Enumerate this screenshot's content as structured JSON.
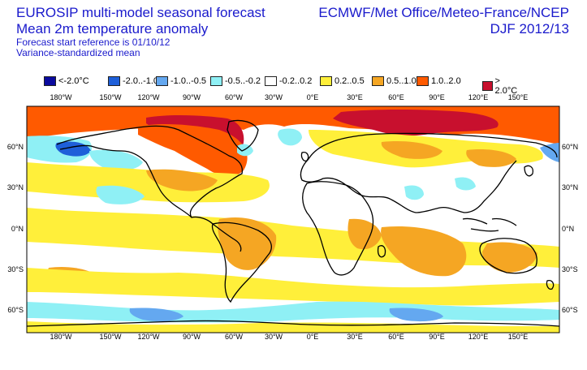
{
  "header": {
    "title_line1": "EUROSIP multi-model seasonal forecast",
    "title_line2": "Mean 2m temperature anomaly",
    "subtitle_line1": "Forecast start reference is 01/10/12",
    "subtitle_line2": "Variance-standardized mean",
    "source": "ECMWF/Met Office/Meteo-France/NCEP",
    "season": "DJF 2012/13"
  },
  "legend": [
    {
      "label": "<-2.0°C",
      "color": "#0a0a9e"
    },
    {
      "label": "-2.0..-1.0",
      "color": "#1e5fd9"
    },
    {
      "label": "-1.0..-0.5",
      "color": "#64a8f0"
    },
    {
      "label": "-0.5..-0.2",
      "color": "#8ff0f5"
    },
    {
      "label": "-0.2..0.2",
      "color": "#ffffff"
    },
    {
      "label": "0.2..0.5",
      "color": "#ffef3a"
    },
    {
      "label": "0.5..1.0",
      "color": "#f5a623"
    },
    {
      "label": "1.0..2.0",
      "color": "#ff5a00"
    },
    {
      "label": "> 2.0°C",
      "color": "#c8102e"
    }
  ],
  "axes": {
    "lon_labels": [
      "180°W",
      "150°W",
      "120°W",
      "90°W",
      "60°W",
      "30°W",
      "0°E",
      "30°E",
      "60°E",
      "90°E",
      "120°E",
      "150°E"
    ],
    "lat_labels": [
      "60°N",
      "30°N",
      "0°N",
      "30°S",
      "60°S"
    ]
  }
}
